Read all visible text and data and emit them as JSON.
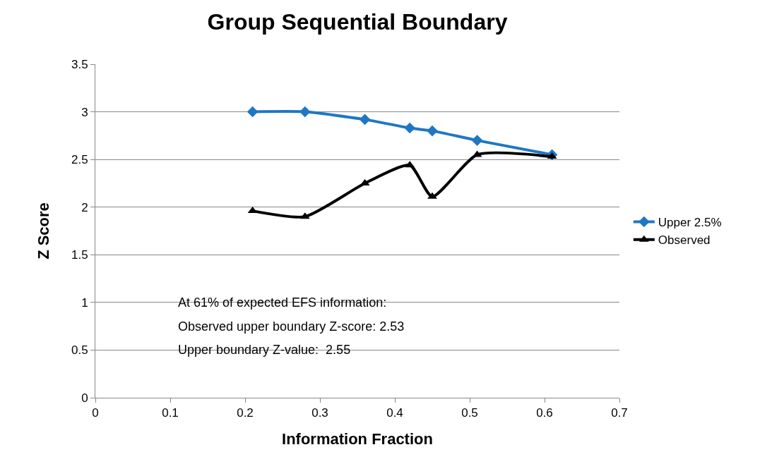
{
  "chart_data": {
    "type": "line",
    "title": "Group Sequential Boundary",
    "xlabel": "Information Fraction",
    "ylabel": "Z Score",
    "x": [
      0.21,
      0.28,
      0.36,
      0.42,
      0.45,
      0.51,
      0.61
    ],
    "series": [
      {
        "name": "Upper 2.5%",
        "color": "#1f77c4",
        "marker": "diamond",
        "values": [
          3.0,
          3.0,
          2.92,
          2.83,
          2.8,
          2.7,
          2.55
        ]
      },
      {
        "name": "Observed",
        "color": "#000000",
        "marker": "triangle",
        "values": [
          1.96,
          1.9,
          2.25,
          2.44,
          2.11,
          2.55,
          2.53
        ]
      }
    ],
    "xlim": [
      0,
      0.7
    ],
    "xticks": [
      0,
      0.1,
      0.2,
      0.3,
      0.4,
      0.5,
      0.6,
      0.7
    ],
    "ylim": [
      0,
      3.5
    ],
    "yticks": [
      0,
      0.5,
      1,
      1.5,
      2,
      2.5,
      3,
      3.5
    ],
    "grid": "y",
    "legend": "right",
    "line_style": "solid",
    "annotations": [
      "At 61% of expected EFS information:",
      "Observed upper boundary Z-score: 2.53",
      "Upper boundary Z-value:  2.55"
    ]
  }
}
